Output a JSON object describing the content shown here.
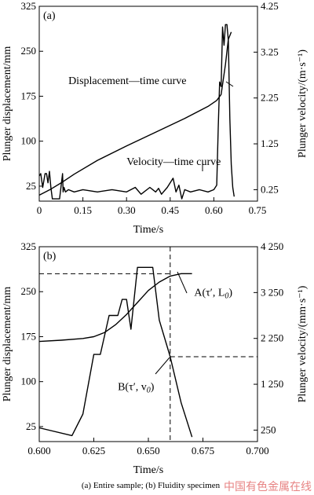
{
  "caption": "(a) Entire sample; (b) Fluidity specimen",
  "watermark": "中国有色金属在线",
  "chart_data": [
    {
      "type": "line",
      "panel": "(a)",
      "xlabel": "Time/s",
      "ylabel_left": "Plunger displacement/mm",
      "ylabel_right": "Plunger velocity/(m·s⁻¹)",
      "xlim": [
        0,
        0.75
      ],
      "ylim_left": [
        0,
        325
      ],
      "ylim_right": [
        0,
        4.25
      ],
      "x_ticks": [
        "0",
        "0.15",
        "0.30",
        "0.45",
        "0.60",
        "0.75"
      ],
      "x_tick_values": [
        0,
        0.15,
        0.3,
        0.45,
        0.6,
        0.75
      ],
      "y_left_ticks": [
        "25",
        "100",
        "175",
        "250",
        "325"
      ],
      "y_left_tick_values": [
        25,
        100,
        175,
        250,
        325
      ],
      "y_right_ticks": [
        "0.25",
        "1.25",
        "2.25",
        "3.25",
        "4.25"
      ],
      "y_right_tick_values": [
        0.25,
        1.25,
        2.25,
        3.25,
        4.25
      ],
      "series": [
        {
          "name": "Displacement—time curve",
          "axis": "left",
          "x": [
            0.0,
            0.04,
            0.08,
            0.12,
            0.2,
            0.3,
            0.4,
            0.5,
            0.58,
            0.61,
            0.625,
            0.64,
            0.65,
            0.66
          ],
          "y": [
            10,
            20,
            32,
            45,
            68,
            92,
            115,
            138,
            158,
            168,
            178,
            228,
            270,
            282
          ]
        },
        {
          "name": "Velocity—time curve",
          "axis": "right",
          "x": [
            0.0,
            0.005,
            0.012,
            0.02,
            0.025,
            0.03,
            0.035,
            0.04,
            0.045,
            0.05,
            0.07,
            0.08,
            0.082,
            0.085,
            0.09,
            0.1,
            0.12,
            0.15,
            0.2,
            0.25,
            0.3,
            0.33,
            0.35,
            0.38,
            0.4,
            0.41,
            0.42,
            0.44,
            0.46,
            0.47,
            0.48,
            0.49,
            0.5,
            0.52,
            0.55,
            0.58,
            0.6,
            0.61,
            0.615,
            0.62,
            0.625,
            0.63,
            0.635,
            0.64,
            0.645,
            0.65,
            0.655,
            0.66,
            0.665,
            0.67
          ],
          "y": [
            0.55,
            0.6,
            0.3,
            0.6,
            0.6,
            0.4,
            0.65,
            0.3,
            0.05,
            0.05,
            0.05,
            0.6,
            0.2,
            0.3,
            0.2,
            0.25,
            0.2,
            0.25,
            0.2,
            0.25,
            0.2,
            0.3,
            0.15,
            0.3,
            0.2,
            0.28,
            0.15,
            0.3,
            0.5,
            0.2,
            0.35,
            0.05,
            0.25,
            0.2,
            0.25,
            0.2,
            0.25,
            0.35,
            1.6,
            2.6,
            2.5,
            3.8,
            3.4,
            3.85,
            3.85,
            3.5,
            1.8,
            0.8,
            0.3,
            0.1
          ]
        }
      ],
      "annotations": [
        {
          "text": "Displacement—time curve",
          "x": 0.1,
          "y": 195
        },
        {
          "text": "Velocity—time curve",
          "x": 0.3,
          "y": 60
        }
      ]
    },
    {
      "type": "line",
      "panel": "(b)",
      "xlabel": "Time/s",
      "ylabel_left": "Plunger displacement/mm",
      "ylabel_right": "Plunger velocity/(mm·s⁻¹)",
      "xlim": [
        0.6,
        0.7
      ],
      "ylim_left": [
        0,
        325
      ],
      "ylim_right": [
        0,
        4250
      ],
      "x_ticks": [
        "0.600",
        "0.625",
        "0.650",
        "0.675",
        "0.700"
      ],
      "x_tick_values": [
        0.6,
        0.625,
        0.65,
        0.675,
        0.7
      ],
      "y_left_ticks": [
        "25",
        "100",
        "175",
        "250",
        "325"
      ],
      "y_left_tick_values": [
        25,
        100,
        175,
        250,
        325
      ],
      "y_right_ticks": [
        "250",
        "1 250",
        "2 250",
        "3 250",
        "4 250"
      ],
      "y_right_tick_values": [
        250,
        1250,
        2250,
        3250,
        4250
      ],
      "series": [
        {
          "name": "Displacement",
          "axis": "left",
          "x": [
            0.6,
            0.61,
            0.62,
            0.625,
            0.63,
            0.635,
            0.64,
            0.645,
            0.65,
            0.655,
            0.66,
            0.665,
            0.67
          ],
          "y": [
            167,
            169,
            172,
            175,
            182,
            195,
            212,
            232,
            252,
            266,
            276,
            280,
            280
          ]
        },
        {
          "name": "Velocity",
          "axis": "right",
          "x": [
            0.6,
            0.615,
            0.62,
            0.625,
            0.628,
            0.632,
            0.636,
            0.638,
            0.64,
            0.642,
            0.645,
            0.652,
            0.655,
            0.66,
            0.665,
            0.67
          ],
          "y": [
            300,
            130,
            600,
            1900,
            1900,
            2750,
            2750,
            3100,
            3100,
            2450,
            3800,
            3800,
            2650,
            1850,
            850,
            100
          ]
        }
      ],
      "guides": {
        "tau_prime": 0.66,
        "L0": 280,
        "v0": 1850
      },
      "annotations": [
        {
          "text": "A(τ′, L",
          "sub": "0",
          "tail": ")",
          "x": 0.671,
          "y": 243
        },
        {
          "text": "B(τ′, v",
          "sub": "0",
          "tail": ")",
          "x": 0.636,
          "y": 86
        }
      ]
    }
  ]
}
